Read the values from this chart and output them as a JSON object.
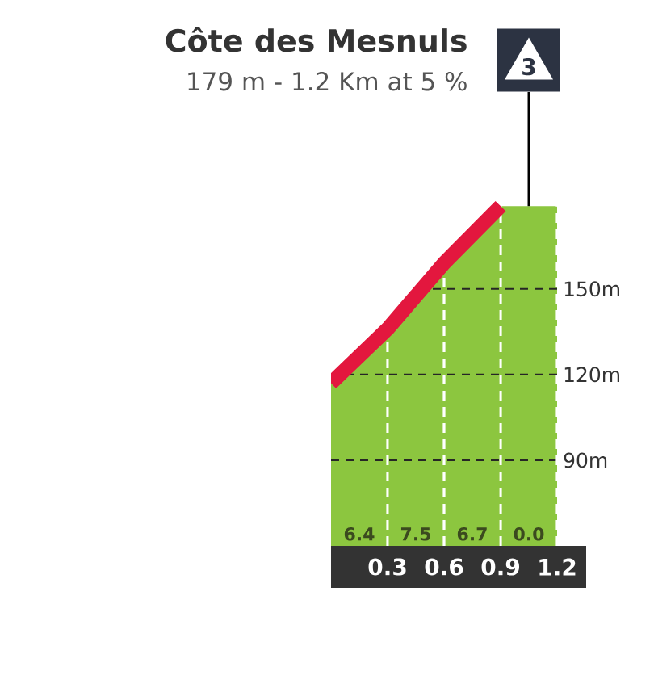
{
  "chart_data": {
    "type": "area",
    "title": "Côte des Mesnuls",
    "subtitle": "179 m - 1.2 Km at 5 %",
    "x": [
      0,
      0.3,
      0.6,
      0.9,
      1.2
    ],
    "series": [
      {
        "color": "#8cc63f",
        "values": [
          117,
          136,
          159,
          179,
          179
        ]
      },
      {
        "type": "line",
        "color": "#e3173e",
        "x": [
          0,
          0.3,
          0.6,
          0.9
        ],
        "values": [
          117,
          136,
          159,
          179
        ]
      }
    ],
    "xlim": [
      0,
      1.2
    ],
    "ylim": [
      60,
      185
    ],
    "xticks": [
      0.3,
      0.6,
      0.9,
      1.2
    ],
    "yticks": [
      {
        "value": 90,
        "label": "90m"
      },
      {
        "value": 120,
        "label": "120m"
      },
      {
        "value": 150,
        "label": "150m"
      }
    ],
    "grid": true,
    "annotations": [
      "6.4",
      "7.5",
      "6.7",
      "0.0",
      {
        "text": "3",
        "x": 1.05,
        "y": 179
      }
    ]
  }
}
